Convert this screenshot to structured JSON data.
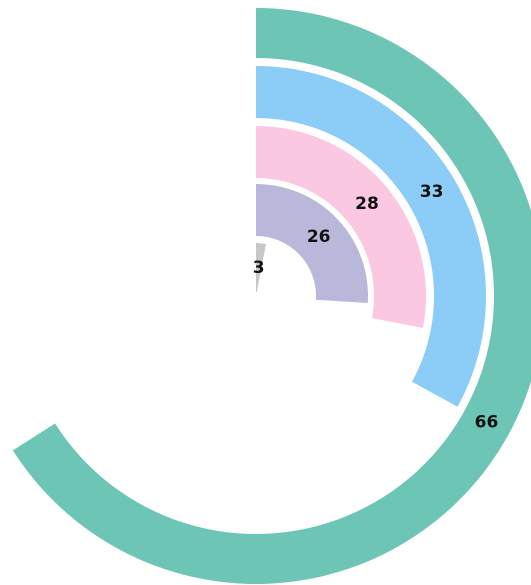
{
  "chart_data": {
    "type": "radialBar",
    "values": [
      66,
      33,
      28,
      26,
      3
    ],
    "colors": [
      "#6cc5b5",
      "#8bcdf7",
      "#fbc8e2",
      "#b9b8da",
      "#c7c7c7"
    ],
    "xlim": [
      0,
      100
    ]
  }
}
